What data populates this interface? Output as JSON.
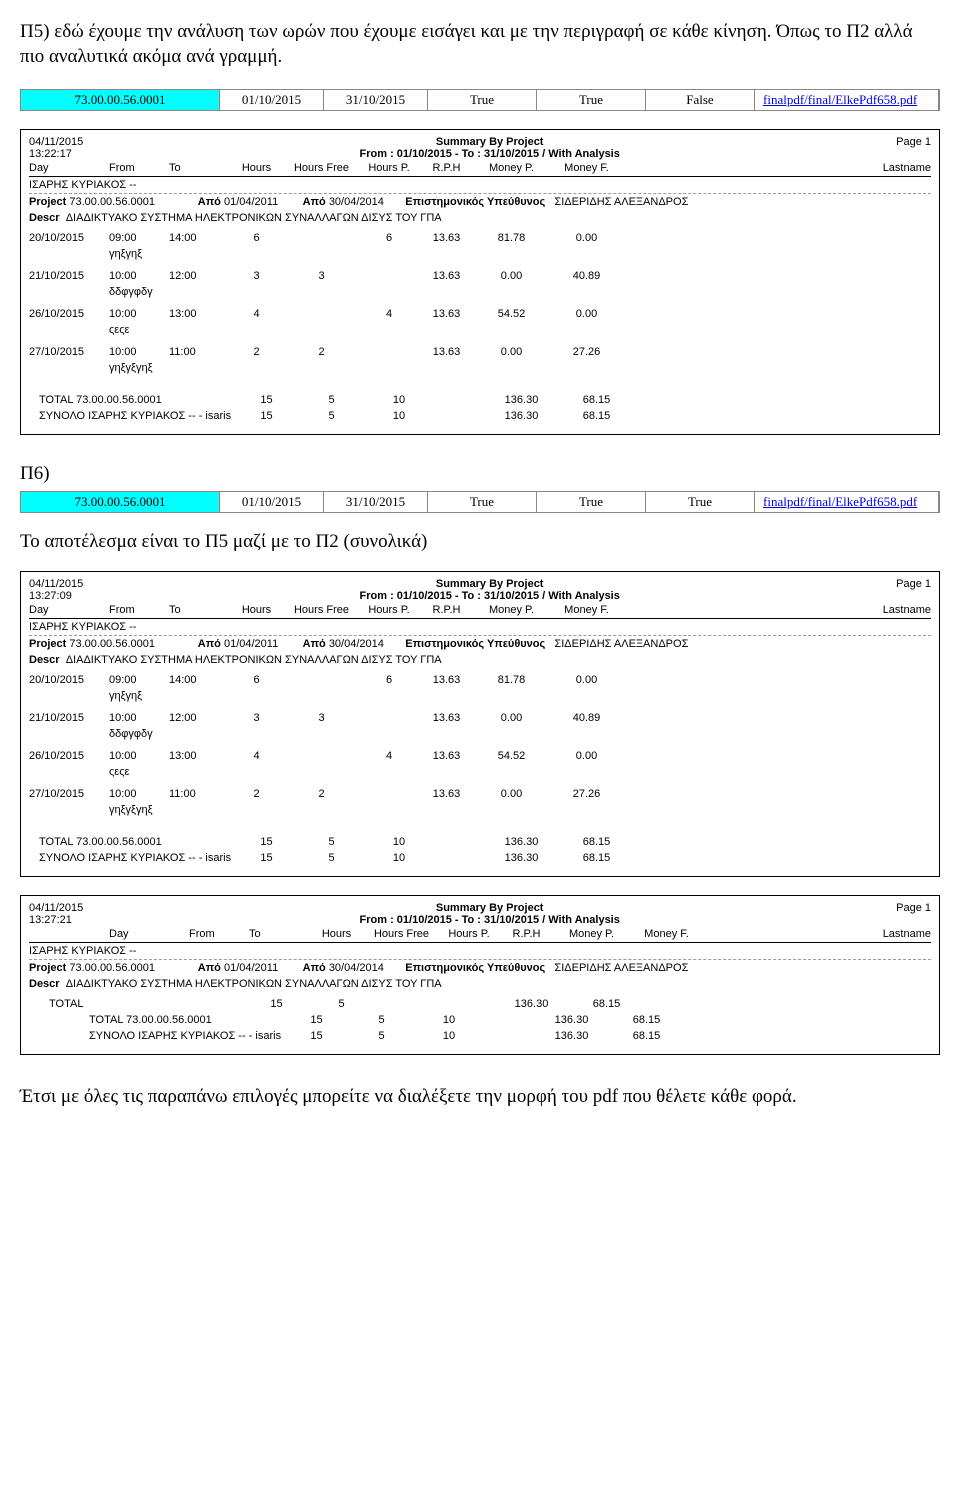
{
  "intro": "Π5) εδώ έχουμε την ανάλυση των ωρών που έχουμε εισάγει και με την περιγραφή σε κάθε κίνηση. Όπως το Π2 αλλά πιο αναλυτικά ακόμα ανά γραμμή.",
  "bar1": {
    "code": "73.00.00.56.0001",
    "d1": "01/10/2015",
    "d2": "31/10/2015",
    "f1": "True",
    "f2": "True",
    "f3": "False",
    "link": "finalpdf/final/ElkePdf658.pdf"
  },
  "report1": {
    "date": "04/11/2015",
    "time": "13:22:17",
    "title": "Summary By Project",
    "range": "From : 01/10/2015 - To : 31/10/2015 /  With Analysis",
    "page": "Page 1",
    "cols": {
      "day": "Day",
      "from": "From",
      "to": "To",
      "hours": "Hours",
      "hoursfree": "Hours Free",
      "hoursp": "Hours P.",
      "rph": "R.P.H",
      "moneyp": "Money P.",
      "moneyf": "Money F.",
      "lastname": "Lastname"
    },
    "person": "ΙΣΑΡΗΣ ΚΥΡΙΑΚΟΣ --",
    "project_label": "Project",
    "project_code": "73.00.00.56.0001",
    "apo_label": "Από",
    "apo1": "01/04/2011",
    "apo2": "30/04/2014",
    "ep_label": "Επιστημονικός Υπεύθυνος",
    "ep_name": "ΣΙΔΕΡΙΔΗΣ ΑΛΕΞΑΝΔΡΟΣ",
    "descr_label": "Descr",
    "descr": "ΔΙΑΔΙΚΤΥΑΚΟ ΣΥΣΤΗΜΑ ΗΛΕΚΤΡΟΝΙΚΩΝ ΣΥΝΑΛΛΑΓΩΝ ΔΙΣΥΣ ΤΟΥ ΓΠΑ",
    "rows": [
      {
        "day": "20/10/2015",
        "from": "09:00",
        "to": "14:00",
        "hours": "6",
        "hoursfree": "",
        "hoursp": "6",
        "rph": "13.63",
        "moneyp": "81.78",
        "moneyf": "0.00",
        "note": "γηξγηξ"
      },
      {
        "day": "21/10/2015",
        "from": "10:00",
        "to": "12:00",
        "hours": "3",
        "hoursfree": "3",
        "hoursp": "",
        "rph": "13.63",
        "moneyp": "0.00",
        "moneyf": "40.89",
        "note": "δδφγφδγ"
      },
      {
        "day": "26/10/2015",
        "from": "10:00",
        "to": "13:00",
        "hours": "4",
        "hoursfree": "",
        "hoursp": "4",
        "rph": "13.63",
        "moneyp": "54.52",
        "moneyf": "0.00",
        "note": "ςεςε"
      },
      {
        "day": "27/10/2015",
        "from": "10:00",
        "to": "11:00",
        "hours": "2",
        "hoursfree": "2",
        "hoursp": "",
        "rph": "13.63",
        "moneyp": "0.00",
        "moneyf": "27.26",
        "note": "γηξγξγηξ"
      }
    ],
    "total_label": "TOTAL 73.00.00.56.0001",
    "synolo_label": "ΣΥΝΟΛΟ  ΙΣΑΡΗΣ ΚΥΡΙΑΚΟΣ -- - isaris",
    "totals": {
      "hours": "15",
      "hoursfree": "5",
      "hoursp": "10",
      "moneyp": "136.30",
      "moneyf": "68.15"
    }
  },
  "p6_label": "Π6)",
  "bar2": {
    "code": "73.00.00.56.0001",
    "d1": "01/10/2015",
    "d2": "31/10/2015",
    "f1": "True",
    "f2": "True",
    "f3": "True",
    "link": "finalpdf/final/ElkePdf658.pdf"
  },
  "mid_text": "Το αποτέλεσμα είναι το Π5 μαζί με το Π2 (συνολικά)",
  "report2": {
    "date": "04/11/2015",
    "time": "13:27:09",
    "page": "Page 1"
  },
  "report3": {
    "date": "04/11/2015",
    "time": "13:27:21",
    "page": "Page 1",
    "total_only": "TOTAL",
    "total2_label": "TOTAL 73.00.00.56.0001",
    "synolo2_label": "ΣΥΝΟΛΟ  ΙΣΑΡΗΣ ΚΥΡΙΑΚΟΣ -- - isaris",
    "t1": {
      "hours": "15",
      "hoursfree": "5",
      "hoursp": "",
      "moneyp": "136.30",
      "moneyf": "68.15"
    },
    "t2": {
      "hours": "15",
      "hoursfree": "5",
      "hoursp": "10",
      "moneyp": "136.30",
      "moneyf": "68.15"
    },
    "t3": {
      "hours": "15",
      "hoursfree": "5",
      "hoursp": "10",
      "moneyp": "136.30",
      "moneyf": "68.15"
    }
  },
  "footer": "Έτσι με όλες τις παραπάνω επιλογές μπορείτε να διαλέξετε την μορφή του pdf που θέλετε κάθε φορά."
}
